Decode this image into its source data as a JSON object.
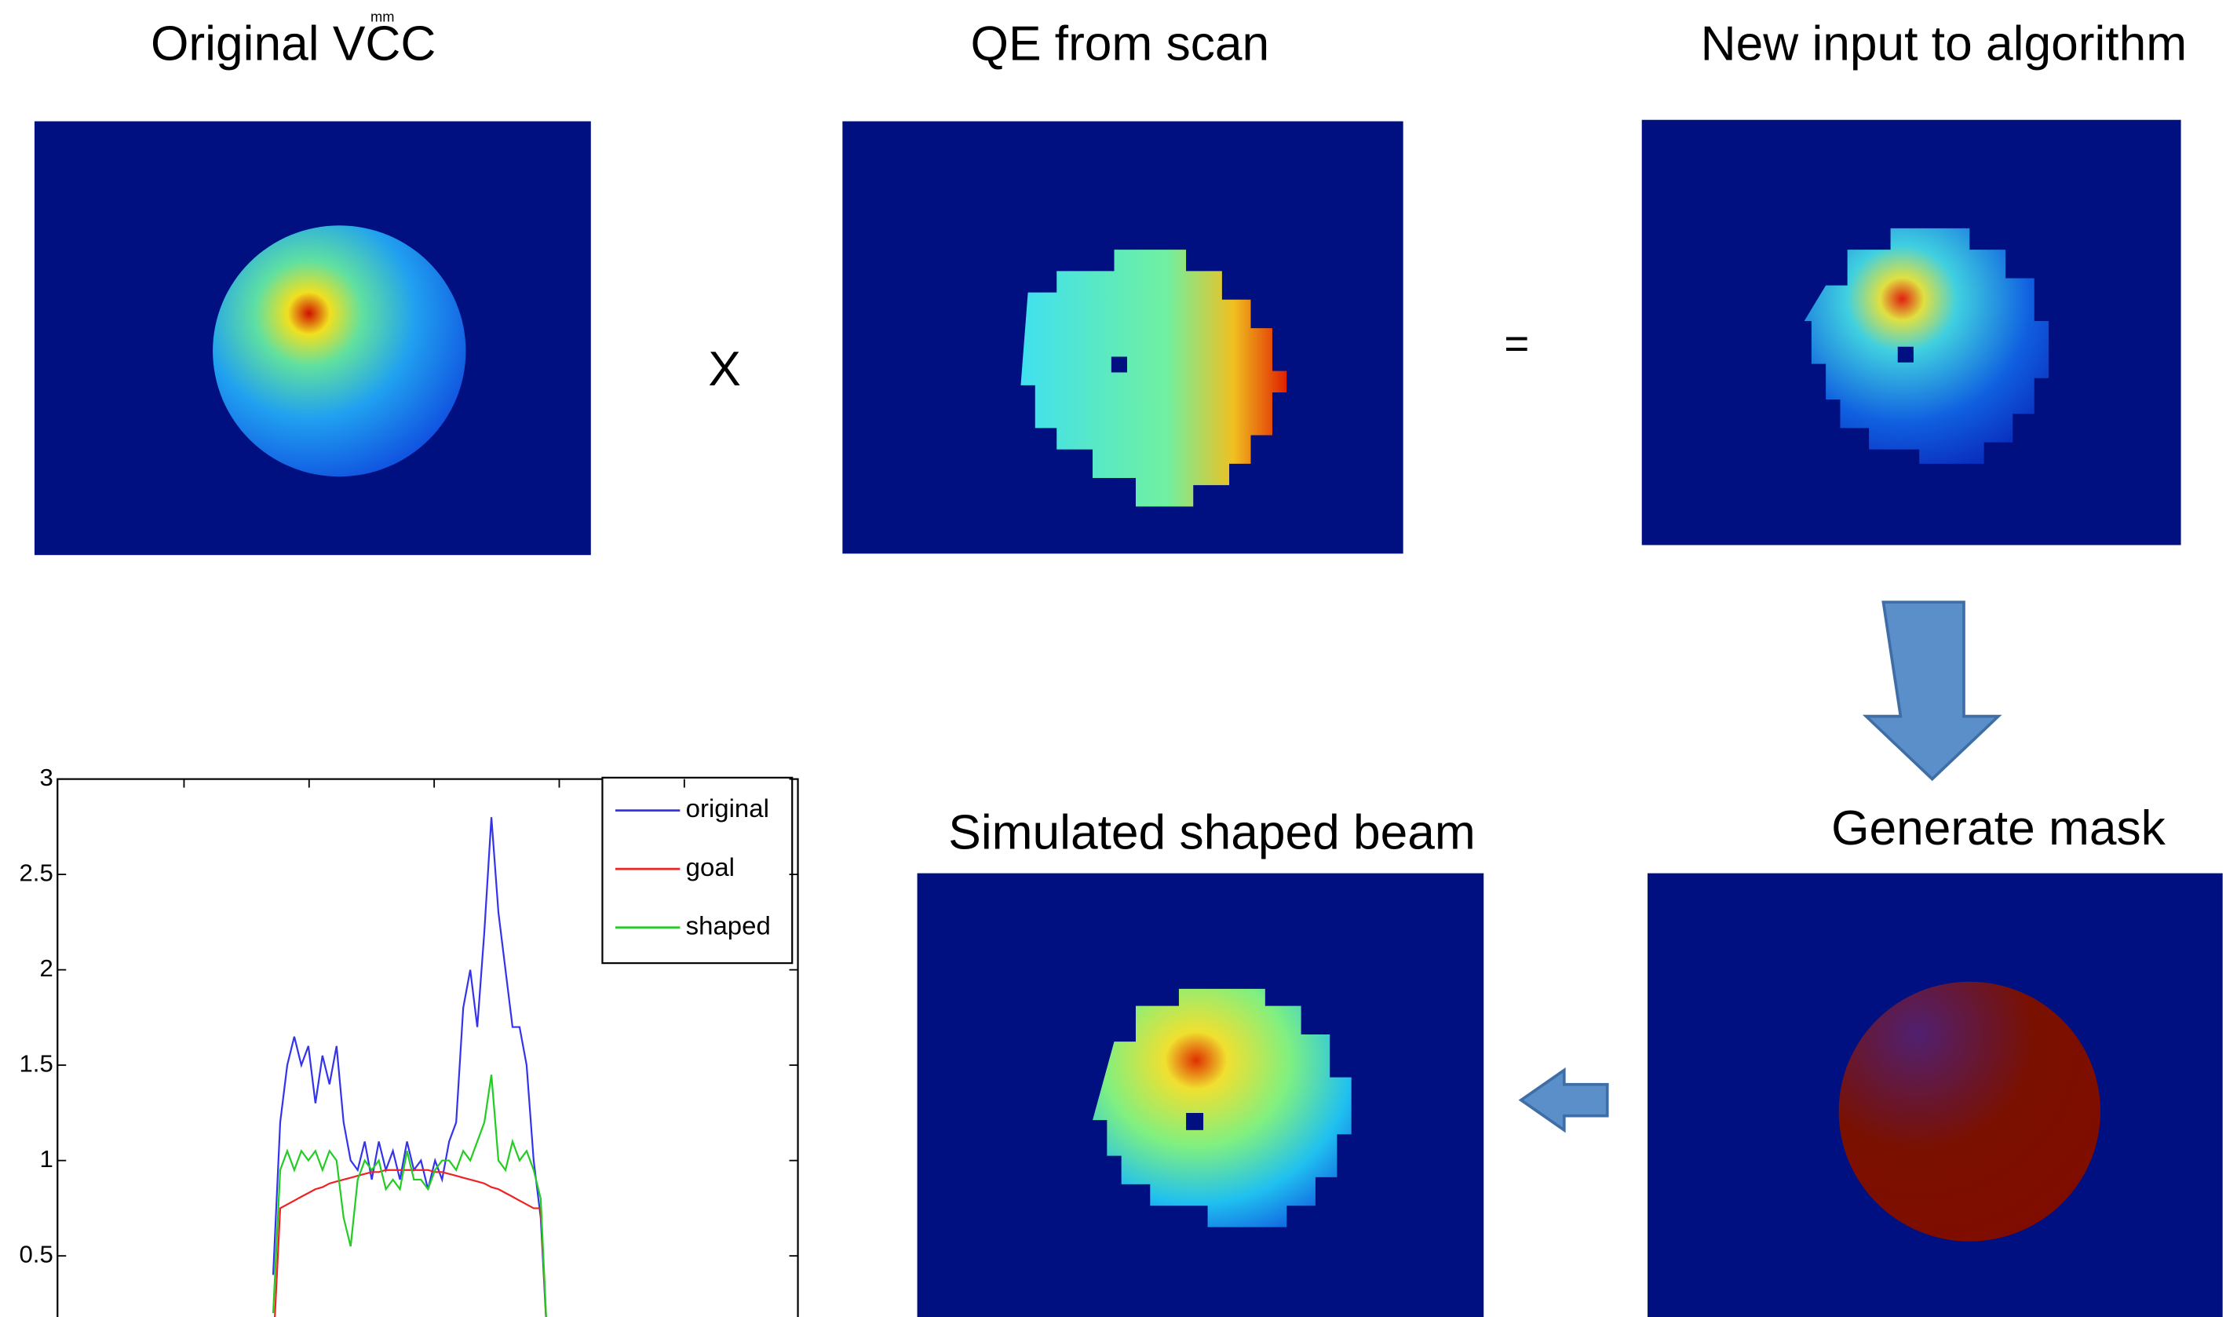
{
  "panels": [
    {
      "unit": "mm",
      "title": "Original VCC"
    },
    {
      "title": "QE from scan"
    },
    {
      "title": "New input to algorithm"
    },
    {
      "title": "Generate mask"
    },
    {
      "title": "Simulated shaped beam"
    }
  ],
  "operators": [
    "X",
    "="
  ],
  "plot": {
    "type": "line",
    "ylim": [
      0,
      3
    ],
    "yticks": [
      0.5,
      1,
      1.5,
      2,
      2.5,
      3
    ],
    "series": [
      {
        "name": "original",
        "color": "#3333ee",
        "values": [
          0.4,
          1.2,
          1.5,
          1.65,
          1.5,
          1.6,
          1.3,
          1.55,
          1.4,
          1.6,
          1.2,
          1.0,
          0.95,
          1.1,
          0.9,
          1.1,
          0.95,
          1.05,
          0.9,
          1.1,
          0.95,
          1.0,
          0.85,
          1.0,
          0.9,
          1.1,
          1.2,
          1.8,
          2.0,
          1.7,
          2.2,
          2.8,
          2.3,
          2.0,
          1.7,
          1.7,
          1.5,
          1.0,
          0.7,
          0
        ]
      },
      {
        "name": "goal",
        "color": "#ee2222",
        "values": [
          0,
          0.75,
          0.77,
          0.79,
          0.81,
          0.83,
          0.85,
          0.86,
          0.88,
          0.89,
          0.9,
          0.91,
          0.92,
          0.93,
          0.94,
          0.94,
          0.95,
          0.95,
          0.95,
          0.95,
          0.95,
          0.95,
          0.95,
          0.94,
          0.94,
          0.93,
          0.92,
          0.91,
          0.9,
          0.89,
          0.88,
          0.86,
          0.85,
          0.83,
          0.81,
          0.79,
          0.77,
          0.75,
          0.75,
          0
        ]
      },
      {
        "name": "shaped",
        "color": "#22cc22",
        "values": [
          0.2,
          0.95,
          1.05,
          0.95,
          1.05,
          1.0,
          1.05,
          0.95,
          1.05,
          1.0,
          0.7,
          0.55,
          0.9,
          1.0,
          0.95,
          1.0,
          0.85,
          0.9,
          0.85,
          1.05,
          0.9,
          0.9,
          0.85,
          0.95,
          1.0,
          1.0,
          0.95,
          1.05,
          1.0,
          1.1,
          1.2,
          1.45,
          1.0,
          0.95,
          1.1,
          1.0,
          1.05,
          0.95,
          0.8,
          0
        ]
      }
    ]
  }
}
